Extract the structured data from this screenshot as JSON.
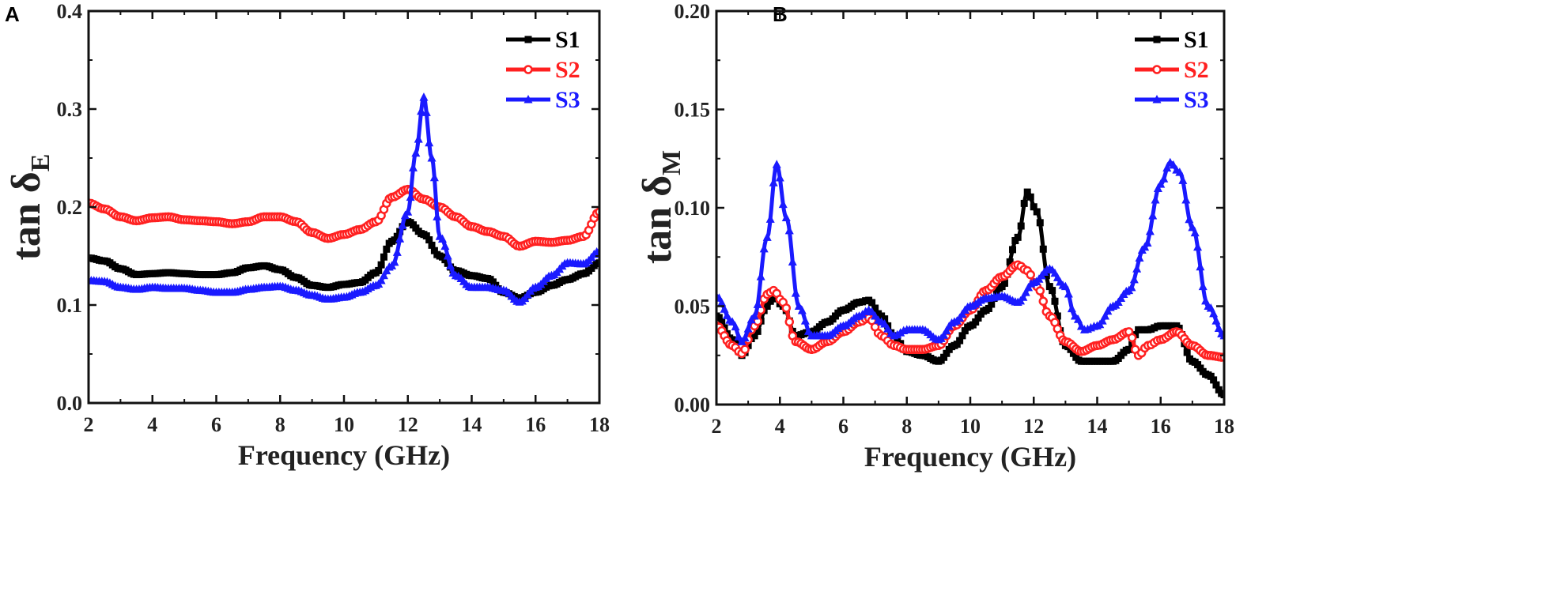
{
  "chart_data": [
    {
      "panel": "A",
      "type": "line",
      "xlabel": "Frequency (GHz)",
      "ylabel_main": "tan δ",
      "ylabel_sub": "E",
      "xlim": [
        2,
        18
      ],
      "ylim": [
        0.0,
        0.4
      ],
      "xticks": [
        2,
        4,
        6,
        8,
        10,
        12,
        14,
        16,
        18
      ],
      "yticks": [
        "0.0",
        "0.1",
        "0.2",
        "0.3",
        "0.4"
      ],
      "legend_position": "top-right",
      "series": [
        {
          "name": "S1",
          "color": "#000000",
          "marker": "square",
          "x": [
            2,
            2.5,
            3,
            3.5,
            4,
            4.5,
            5,
            5.5,
            6,
            6.5,
            7,
            7.5,
            8,
            8.5,
            9,
            9.5,
            10,
            10.5,
            11,
            11.5,
            12,
            12.5,
            13,
            13.5,
            14,
            14.5,
            15,
            15.5,
            16,
            16.5,
            17,
            17.5,
            18
          ],
          "y": [
            0.148,
            0.145,
            0.137,
            0.131,
            0.132,
            0.133,
            0.132,
            0.131,
            0.131,
            0.133,
            0.138,
            0.14,
            0.136,
            0.128,
            0.12,
            0.118,
            0.121,
            0.123,
            0.133,
            0.165,
            0.185,
            0.172,
            0.15,
            0.135,
            0.13,
            0.127,
            0.113,
            0.107,
            0.113,
            0.12,
            0.126,
            0.132,
            0.143
          ]
        },
        {
          "name": "S2",
          "color": "#ff2020",
          "marker": "circle",
          "x": [
            2,
            2.5,
            3,
            3.5,
            4,
            4.5,
            5,
            5.5,
            6,
            6.5,
            7,
            7.5,
            8,
            8.5,
            9,
            9.5,
            10,
            10.5,
            11,
            11.5,
            12,
            12.5,
            13,
            13.5,
            14,
            14.5,
            15,
            15.5,
            16,
            16.5,
            17,
            17.5,
            18
          ],
          "y": [
            0.204,
            0.198,
            0.19,
            0.186,
            0.189,
            0.19,
            0.187,
            0.186,
            0.185,
            0.183,
            0.185,
            0.19,
            0.19,
            0.185,
            0.174,
            0.168,
            0.172,
            0.177,
            0.185,
            0.21,
            0.218,
            0.208,
            0.2,
            0.19,
            0.18,
            0.175,
            0.17,
            0.16,
            0.165,
            0.164,
            0.166,
            0.17,
            0.195
          ]
        },
        {
          "name": "S3",
          "color": "#1a1aff",
          "marker": "triangle",
          "x": [
            2,
            2.5,
            3,
            3.5,
            4,
            4.5,
            5,
            5.5,
            6,
            6.5,
            7,
            7.5,
            8,
            8.5,
            9,
            9.5,
            10,
            10.5,
            11,
            11.5,
            12,
            12.25,
            12.5,
            12.75,
            13,
            13.5,
            14,
            14.5,
            15,
            15.5,
            16,
            16.5,
            17,
            17.5,
            18
          ],
          "y": [
            0.125,
            0.124,
            0.118,
            0.116,
            0.118,
            0.117,
            0.117,
            0.115,
            0.113,
            0.113,
            0.116,
            0.118,
            0.119,
            0.115,
            0.11,
            0.106,
            0.108,
            0.113,
            0.12,
            0.14,
            0.195,
            0.255,
            0.312,
            0.25,
            0.17,
            0.13,
            0.118,
            0.118,
            0.115,
            0.103,
            0.118,
            0.13,
            0.143,
            0.142,
            0.155
          ]
        }
      ]
    },
    {
      "panel": "B",
      "type": "line",
      "xlabel": "Frequency (GHz)",
      "ylabel_main": "tan δ",
      "ylabel_sub": "M",
      "xlim": [
        2,
        18
      ],
      "ylim": [
        0.0,
        0.2
      ],
      "xticks": [
        2,
        4,
        6,
        8,
        10,
        12,
        14,
        16,
        18
      ],
      "yticks": [
        "0.00",
        "0.05",
        "0.10",
        "0.15",
        "0.20"
      ],
      "legend_position": "top-right",
      "series": [
        {
          "name": "S1",
          "color": "#000000",
          "marker": "square",
          "x": [
            2,
            2.5,
            2.8,
            3.2,
            3.6,
            3.8,
            4.1,
            4.5,
            5,
            5.5,
            6,
            6.5,
            6.8,
            7.2,
            7.6,
            8,
            8.5,
            9,
            9.5,
            10,
            10.5,
            11,
            11.5,
            11.8,
            12.1,
            12.5,
            13,
            13.5,
            14,
            14.5,
            15,
            15.3,
            15.6,
            16,
            16.5,
            17,
            17.5,
            18
          ],
          "y": [
            0.045,
            0.033,
            0.025,
            0.035,
            0.05,
            0.055,
            0.05,
            0.035,
            0.037,
            0.042,
            0.048,
            0.052,
            0.053,
            0.045,
            0.035,
            0.027,
            0.025,
            0.022,
            0.03,
            0.04,
            0.048,
            0.06,
            0.085,
            0.108,
            0.098,
            0.06,
            0.03,
            0.022,
            0.022,
            0.022,
            0.028,
            0.038,
            0.038,
            0.04,
            0.04,
            0.022,
            0.015,
            0.005
          ]
        },
        {
          "name": "S2",
          "color": "#ff2020",
          "marker": "circle",
          "x": [
            2,
            2.5,
            2.8,
            3.2,
            3.6,
            3.8,
            4.1,
            4.5,
            5,
            5.5,
            6,
            6.5,
            6.8,
            7.2,
            7.6,
            8,
            8.5,
            9,
            9.5,
            10,
            10.5,
            11,
            11.5,
            11.8,
            12.1,
            12.5,
            13,
            13.5,
            14,
            14.5,
            15,
            15.3,
            15.6,
            16,
            16.5,
            17,
            17.5,
            18
          ],
          "y": [
            0.04,
            0.03,
            0.026,
            0.04,
            0.056,
            0.058,
            0.052,
            0.032,
            0.028,
            0.032,
            0.037,
            0.042,
            0.044,
            0.035,
            0.03,
            0.028,
            0.028,
            0.03,
            0.04,
            0.048,
            0.058,
            0.065,
            0.071,
            0.068,
            0.06,
            0.045,
            0.032,
            0.027,
            0.03,
            0.033,
            0.037,
            0.025,
            0.03,
            0.033,
            0.037,
            0.03,
            0.025,
            0.024
          ]
        },
        {
          "name": "S3",
          "color": "#1a1aff",
          "marker": "triangle",
          "x": [
            2,
            2.5,
            2.8,
            3.2,
            3.6,
            3.9,
            4.2,
            4.6,
            5,
            5.5,
            6,
            6.5,
            6.8,
            7.2,
            7.6,
            8,
            8.5,
            9,
            9.5,
            10,
            10.5,
            11,
            11.5,
            12,
            12.5,
            13,
            13.3,
            13.6,
            14,
            14.5,
            15,
            15.5,
            16,
            16.3,
            16.6,
            17,
            17.5,
            18
          ],
          "y": [
            0.055,
            0.042,
            0.032,
            0.045,
            0.085,
            0.122,
            0.095,
            0.05,
            0.035,
            0.035,
            0.04,
            0.045,
            0.048,
            0.042,
            0.035,
            0.038,
            0.038,
            0.033,
            0.042,
            0.05,
            0.054,
            0.055,
            0.052,
            0.062,
            0.069,
            0.06,
            0.045,
            0.038,
            0.04,
            0.05,
            0.058,
            0.08,
            0.112,
            0.123,
            0.118,
            0.09,
            0.05,
            0.035
          ]
        }
      ]
    }
  ],
  "panel_letters": [
    "A",
    "B"
  ]
}
